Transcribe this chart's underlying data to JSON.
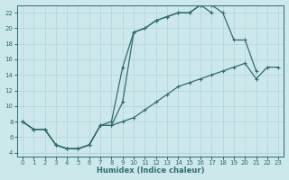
{
  "xlabel": "Humidex (Indice chaleur)",
  "bg_color": "#cde8eb",
  "grid_color": "#b0d4d8",
  "line_color": "#2e6e68",
  "xlim": [
    -0.5,
    23.5
  ],
  "ylim": [
    3.5,
    23.0
  ],
  "xticks": [
    0,
    1,
    2,
    3,
    4,
    5,
    6,
    7,
    8,
    9,
    10,
    11,
    12,
    13,
    14,
    15,
    16,
    17,
    18,
    19,
    20,
    21,
    22,
    23
  ],
  "yticks": [
    4,
    6,
    8,
    10,
    12,
    14,
    16,
    18,
    20,
    22
  ],
  "curve1_x": [
    0,
    1,
    2,
    3,
    4,
    5,
    6,
    7,
    8,
    9,
    10,
    11,
    12,
    13,
    14,
    15,
    16,
    17
  ],
  "curve1_y": [
    8,
    7,
    7,
    5,
    4.5,
    4.5,
    5,
    7.5,
    8,
    15,
    19.5,
    20,
    21,
    21.5,
    22,
    22,
    23,
    22
  ],
  "curve2_x": [
    0,
    1,
    2,
    3,
    4,
    5,
    6,
    7,
    8,
    9,
    10,
    11,
    12,
    13,
    14,
    15,
    16,
    17,
    18,
    19,
    20,
    21
  ],
  "curve2_y": [
    8,
    7,
    7,
    5,
    4.5,
    4.5,
    5,
    7.5,
    7.5,
    10.5,
    19.5,
    20,
    21,
    21.5,
    22,
    22,
    23,
    23,
    22,
    18.5,
    18.5,
    14.5
  ],
  "curve3_x": [
    0,
    1,
    2,
    3,
    4,
    5,
    6,
    7,
    8,
    9,
    10,
    11,
    12,
    13,
    14,
    15,
    16,
    17,
    18,
    19,
    20,
    21,
    22,
    23
  ],
  "curve3_y": [
    8,
    7,
    7,
    5,
    4.5,
    4.5,
    5,
    7.5,
    7.5,
    8.0,
    8.5,
    9.5,
    10.5,
    11.5,
    12.5,
    13.0,
    13.5,
    14.0,
    14.5,
    15.0,
    15.5,
    13.5,
    15.0,
    15.0
  ]
}
